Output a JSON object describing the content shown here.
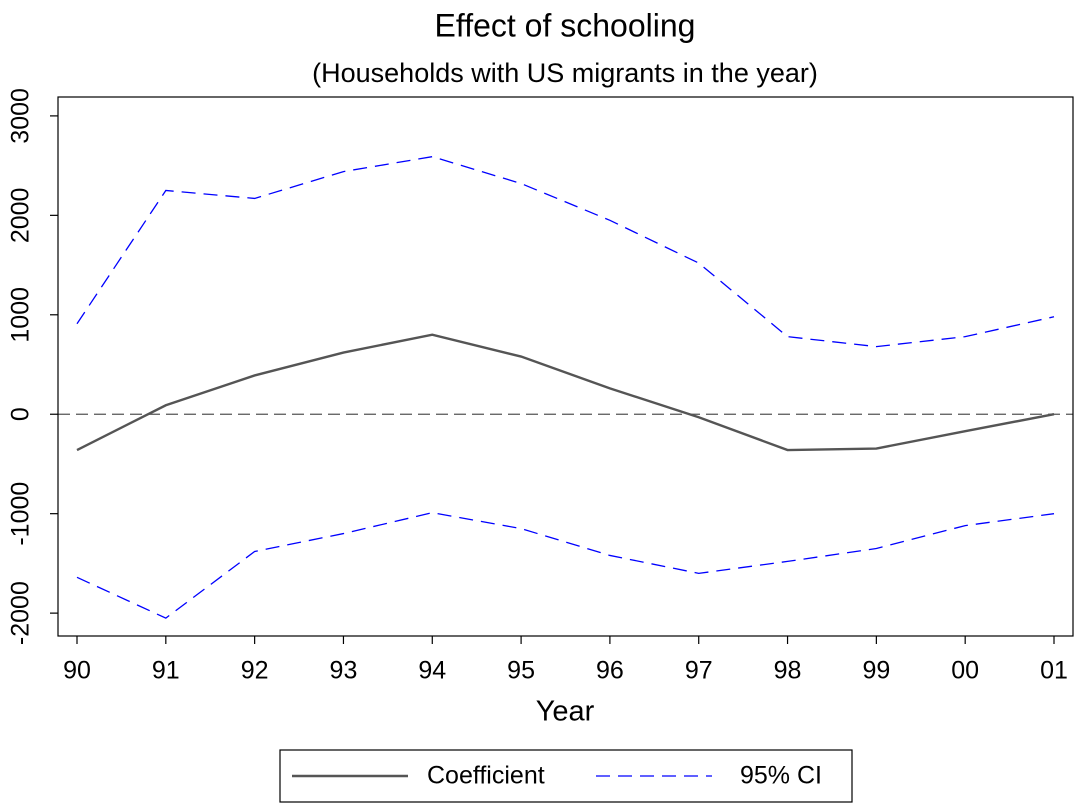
{
  "chart_data": {
    "type": "line",
    "title": "Effect of schooling",
    "subtitle": "(Households with US migrants in the year)",
    "x_label": "Year",
    "categories": [
      "90",
      "91",
      "92",
      "93",
      "94",
      "95",
      "96",
      "97",
      "98",
      "99",
      "00",
      "01"
    ],
    "series": [
      {
        "name": "Coefficient",
        "color": "#555555",
        "values": [
          -360,
          90,
          390,
          620,
          800,
          580,
          260,
          -30,
          -360,
          -345,
          -170,
          0
        ]
      }
    ],
    "ci": {
      "name": "95% CI",
      "color": "#0000ff",
      "upper": [
        910,
        2250,
        2170,
        2440,
        2590,
        2320,
        1950,
        1520,
        780,
        680,
        780,
        980
      ],
      "lower": [
        -1640,
        -2050,
        -1380,
        -1200,
        -990,
        -1150,
        -1420,
        -1600,
        -1480,
        -1350,
        -1120,
        -1000
      ]
    },
    "hline": 0,
    "ylim": [
      -2230,
      3190
    ],
    "yticks": [
      -2000,
      -1000,
      0,
      1000,
      2000,
      3000
    ]
  }
}
